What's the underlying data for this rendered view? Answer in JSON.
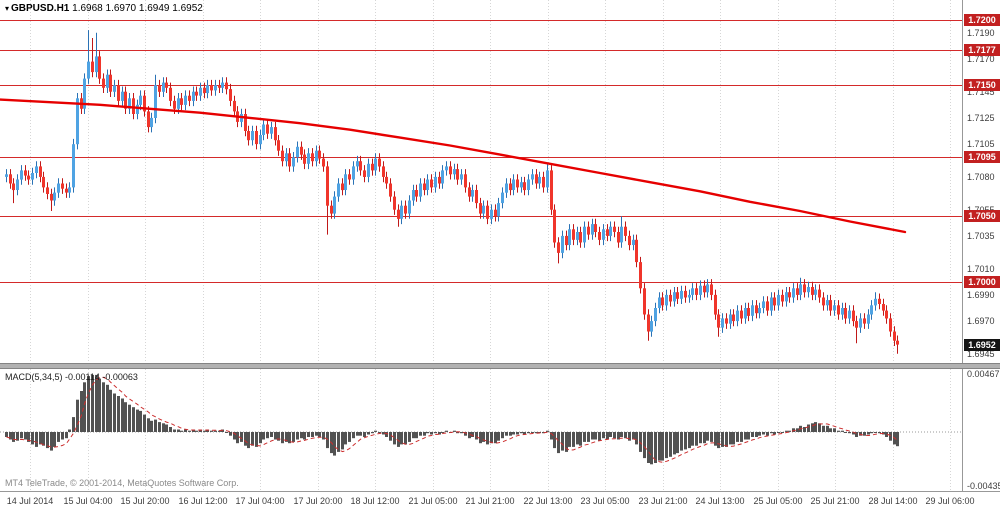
{
  "chart_data": {
    "type": "candlestick",
    "symbol": "GBPUSD",
    "timeframe": "H1",
    "title_symbol": "GBPUSD.H1",
    "title_quotes": "1.6968 1.6970 1.6949 1.6952",
    "quote": {
      "open": "1.6968",
      "high": "1.6970",
      "low": "1.6949",
      "close": "1.6952"
    },
    "ylim": [
      1.6938,
      1.7215
    ],
    "price_ticks": [
      "1.7190",
      "1.7170",
      "1.7145",
      "1.7125",
      "1.7105",
      "1.7080",
      "1.7055",
      "1.7035",
      "1.7010",
      "1.6990",
      "1.6970",
      "1.6945"
    ],
    "levels": [
      "1.7200",
      "1.7177",
      "1.7150",
      "1.7095",
      "1.7050",
      "1.7000"
    ],
    "current_price": "1.6952",
    "time_ticks": [
      "14 Jul 2014",
      "15 Jul 04:00",
      "15 Jul 20:00",
      "16 Jul 12:00",
      "17 Jul 04:00",
      "17 Jul 20:00",
      "18 Jul 12:00",
      "21 Jul 05:00",
      "21 Jul 21:00",
      "22 Jul 13:00",
      "23 Jul 05:00",
      "23 Jul 21:00",
      "24 Jul 13:00",
      "25 Jul 05:00",
      "25 Jul 21:00",
      "28 Jul 14:00",
      "29 Jul 06:00"
    ],
    "candles": {
      "first_open": 1.708,
      "wick_default": 0.0004,
      "closes": [
        1.7082,
        1.7075,
        1.707,
        1.7078,
        1.7085,
        1.7081,
        1.7078,
        1.7083,
        1.7088,
        1.708,
        1.7072,
        1.7067,
        1.7062,
        1.7068,
        1.7075,
        1.7071,
        1.7068,
        1.7072,
        1.7105,
        1.714,
        1.7132,
        1.7155,
        1.7168,
        1.716,
        1.7172,
        1.7155,
        1.7148,
        1.7158,
        1.7145,
        1.715,
        1.7138,
        1.7145,
        1.7132,
        1.714,
        1.7128,
        1.7135,
        1.7142,
        1.713,
        1.7118,
        1.7125,
        1.715,
        1.7145,
        1.7152,
        1.7148,
        1.7138,
        1.7132,
        1.714,
        1.7135,
        1.7142,
        1.7138,
        1.7145,
        1.7142,
        1.7148,
        1.7144,
        1.715,
        1.7146,
        1.715,
        1.7148,
        1.7152,
        1.7147,
        1.7138,
        1.713,
        1.7122,
        1.7128,
        1.7115,
        1.7108,
        1.7115,
        1.7105,
        1.7112,
        1.712,
        1.7113,
        1.7118,
        1.7108,
        1.71,
        1.7092,
        1.7098,
        1.7088,
        1.7095,
        1.7103,
        1.7097,
        1.709,
        1.7098,
        1.7092,
        1.71,
        1.7094,
        1.7088,
        1.7058,
        1.7052,
        1.7065,
        1.7075,
        1.707,
        1.7082,
        1.7078,
        1.7088,
        1.7092,
        1.7085,
        1.708,
        1.709,
        1.7085,
        1.7094,
        1.7088,
        1.708,
        1.7075,
        1.7065,
        1.7055,
        1.7048,
        1.7058,
        1.7052,
        1.7062,
        1.707,
        1.7065,
        1.7075,
        1.707,
        1.7078,
        1.7072,
        1.708,
        1.7075,
        1.7085,
        1.7088,
        1.7082,
        1.7086,
        1.7078,
        1.7082,
        1.7072,
        1.7065,
        1.707,
        1.706,
        1.7052,
        1.7058,
        1.7048,
        1.7055,
        1.705,
        1.706,
        1.7068,
        1.7075,
        1.707,
        1.7078,
        1.7072,
        1.7076,
        1.707,
        1.7078,
        1.7082,
        1.7075,
        1.708,
        1.7072,
        1.7085,
        1.7055,
        1.703,
        1.7022,
        1.7035,
        1.7028,
        1.704,
        1.7032,
        1.7038,
        1.703,
        1.7042,
        1.7036,
        1.7044,
        1.7038,
        1.7032,
        1.704,
        1.7035,
        1.7042,
        1.7038,
        1.703,
        1.7042,
        1.7035,
        1.7028,
        1.7032,
        1.7015,
        1.6995,
        1.6975,
        1.6962,
        1.697,
        1.698,
        1.6988,
        1.6982,
        1.699,
        1.6985,
        1.6992,
        1.6987,
        1.6993,
        1.6988,
        1.699,
        1.6995,
        1.699,
        1.6997,
        1.6992,
        1.6998,
        1.699,
        1.6975,
        1.6965,
        1.6972,
        1.6968,
        1.6975,
        1.697,
        1.6978,
        1.6972,
        1.698,
        1.6974,
        1.6982,
        1.6976,
        1.698,
        1.6985,
        1.6978,
        1.6988,
        1.6982,
        1.699,
        1.6985,
        1.6992,
        1.6988,
        1.6995,
        1.699,
        1.6998,
        1.6992,
        1.6996,
        1.699,
        1.6994,
        1.6988,
        1.6982,
        1.6986,
        1.6978,
        1.6982,
        1.6975,
        1.698,
        1.6972,
        1.6978,
        1.697,
        1.6965,
        1.6972,
        1.6968,
        1.6975,
        1.6982,
        1.6987,
        1.6983,
        1.6978,
        1.6972,
        1.6962,
        1.6955,
        1.6952
      ],
      "wick_highs": {
        "22": 1.7192,
        "23": 1.7186,
        "24": 1.719,
        "40": 1.7158,
        "99": 1.7098,
        "145": 1.709,
        "165": 1.705,
        "213": 1.7003,
        "233": 1.6992
      },
      "wick_lows": {
        "2": 1.706,
        "12": 1.7054,
        "86": 1.7036,
        "105": 1.7042,
        "148": 1.7014,
        "172": 1.6955,
        "191": 1.6958,
        "228": 1.6953,
        "239": 1.6945
      }
    },
    "ma_line": {
      "points": [
        [
          0,
          1.7139
        ],
        [
          50,
          1.7137
        ],
        [
          100,
          1.7135
        ],
        [
          150,
          1.7132
        ],
        [
          200,
          1.7129
        ],
        [
          250,
          1.7125
        ],
        [
          300,
          1.7121
        ],
        [
          350,
          1.7116
        ],
        [
          400,
          1.711
        ],
        [
          450,
          1.7104
        ],
        [
          500,
          1.7097
        ],
        [
          550,
          1.709
        ],
        [
          600,
          1.7083
        ],
        [
          650,
          1.7076
        ],
        [
          700,
          1.7069
        ],
        [
          750,
          1.7061
        ],
        [
          800,
          1.7054
        ],
        [
          850,
          1.7046
        ],
        [
          905,
          1.7038
        ]
      ]
    },
    "macd": {
      "label": "MACD(5,34,5)",
      "value": "-0.00114",
      "signal_value": "-0.00063",
      "display": "MACD(5,34,5) -0.00114 -0.00063",
      "axis_ticks": [
        "0.00467",
        "-0.00435"
      ],
      "ylim": [
        -0.00435,
        0.00467
      ],
      "values": [
        -0.0004,
        -0.0006,
        -0.0008,
        -0.0007,
        -0.0005,
        -0.0006,
        -0.0008,
        -0.001,
        -0.0012,
        -0.001,
        -0.0011,
        -0.0013,
        -0.0015,
        -0.0012,
        -0.0008,
        -0.0006,
        -0.0005,
        0.0002,
        0.0012,
        0.0026,
        0.0033,
        0.004,
        0.0045,
        0.0046,
        0.0046,
        0.0043,
        0.004,
        0.0038,
        0.0034,
        0.0031,
        0.0029,
        0.0027,
        0.0024,
        0.0022,
        0.002,
        0.0018,
        0.0017,
        0.0014,
        0.0011,
        0.0009,
        0.001,
        0.0008,
        0.0007,
        0.0006,
        0.0004,
        0.0002,
        0.0002,
        0.0001,
        0.0002,
        0.0001,
        0.0002,
        0.0001,
        0.0002,
        0.0001,
        0.0002,
        0.0001,
        0.0001,
        0.0001,
        0.0002,
        0.0,
        -0.0003,
        -0.0006,
        -0.0009,
        -0.0008,
        -0.0011,
        -0.0013,
        -0.0011,
        -0.0012,
        -0.0009,
        -0.0006,
        -0.0005,
        -0.0004,
        -0.0006,
        -0.0007,
        -0.0009,
        -0.0008,
        -0.0009,
        -0.0008,
        -0.0006,
        -0.0005,
        -0.0006,
        -0.0004,
        -0.0004,
        -0.0003,
        -0.0004,
        -0.0006,
        -0.0013,
        -0.0017,
        -0.0019,
        -0.0016,
        -0.0014,
        -0.001,
        -0.0008,
        -0.0005,
        -0.0003,
        -0.0003,
        -0.0004,
        -0.0002,
        -0.0001,
        0.0001,
        0.0,
        -0.0002,
        -0.0004,
        -0.0007,
        -0.001,
        -0.0012,
        -0.001,
        -0.001,
        -0.0008,
        -0.0005,
        -0.0005,
        -0.0003,
        -0.0003,
        -0.0001,
        -0.0002,
        -0.0001,
        -0.0002,
        0.0,
        0.0001,
        0.0,
        0.0001,
        -0.0001,
        -0.0001,
        -0.0003,
        -0.0005,
        -0.0004,
        -0.0006,
        -0.0009,
        -0.0008,
        -0.001,
        -0.0009,
        -0.0009,
        -0.0007,
        -0.0005,
        -0.0003,
        -0.0003,
        -0.0002,
        -0.0002,
        -0.0001,
        -0.0002,
        -0.0001,
        0.0,
        -0.0001,
        0.0,
        -0.0001,
        0.0001,
        -0.0006,
        -0.0013,
        -0.0017,
        -0.0015,
        -0.0016,
        -0.0012,
        -0.0012,
        -0.001,
        -0.0011,
        -0.0008,
        -0.0008,
        -0.0006,
        -0.0006,
        -0.0007,
        -0.0005,
        -0.0006,
        -0.0004,
        -0.0005,
        -0.0006,
        -0.0004,
        -0.0005,
        -0.0007,
        -0.0006,
        -0.001,
        -0.0016,
        -0.0021,
        -0.0025,
        -0.0026,
        -0.0025,
        -0.0023,
        -0.0023,
        -0.0021,
        -0.002,
        -0.0018,
        -0.0017,
        -0.0015,
        -0.0014,
        -0.0013,
        -0.0011,
        -0.0011,
        -0.0009,
        -0.0009,
        -0.0007,
        -0.0008,
        -0.0011,
        -0.0013,
        -0.0012,
        -0.0012,
        -0.001,
        -0.001,
        -0.0008,
        -0.0008,
        -0.0006,
        -0.0006,
        -0.0004,
        -0.0004,
        -0.0003,
        -0.0002,
        -0.0003,
        -0.0001,
        -0.0002,
        0.0,
        0.0,
        0.0001,
        0.0001,
        0.0003,
        0.0003,
        0.0005,
        0.0004,
        0.0006,
        0.0007,
        0.0008,
        0.0007,
        0.0005,
        0.0005,
        0.0003,
        0.0003,
        0.0001,
        0.0001,
        0.0,
        -0.0001,
        -0.0002,
        -0.0004,
        -0.0003,
        -0.0003,
        -0.0002,
        -0.0001,
        0.0,
        -0.0001,
        -0.0002,
        -0.0004,
        -0.0007,
        -0.001,
        -0.00114
      ]
    }
  },
  "footer": {
    "copyright": "MT4 TeleTrade, © 2001-2014, MetaQuotes Software Corp."
  },
  "colors": {
    "up": "#4fa3e3",
    "up_border": "#2a72b5",
    "down": "#f0352b",
    "down_border": "#c01818",
    "ma": "#e60000",
    "level": "#d42a2a",
    "badge_red": "#c22020",
    "badge_black": "#141414",
    "hist": "#525252",
    "signal": "#cc2e2e",
    "grid": "#d6d6d6"
  }
}
